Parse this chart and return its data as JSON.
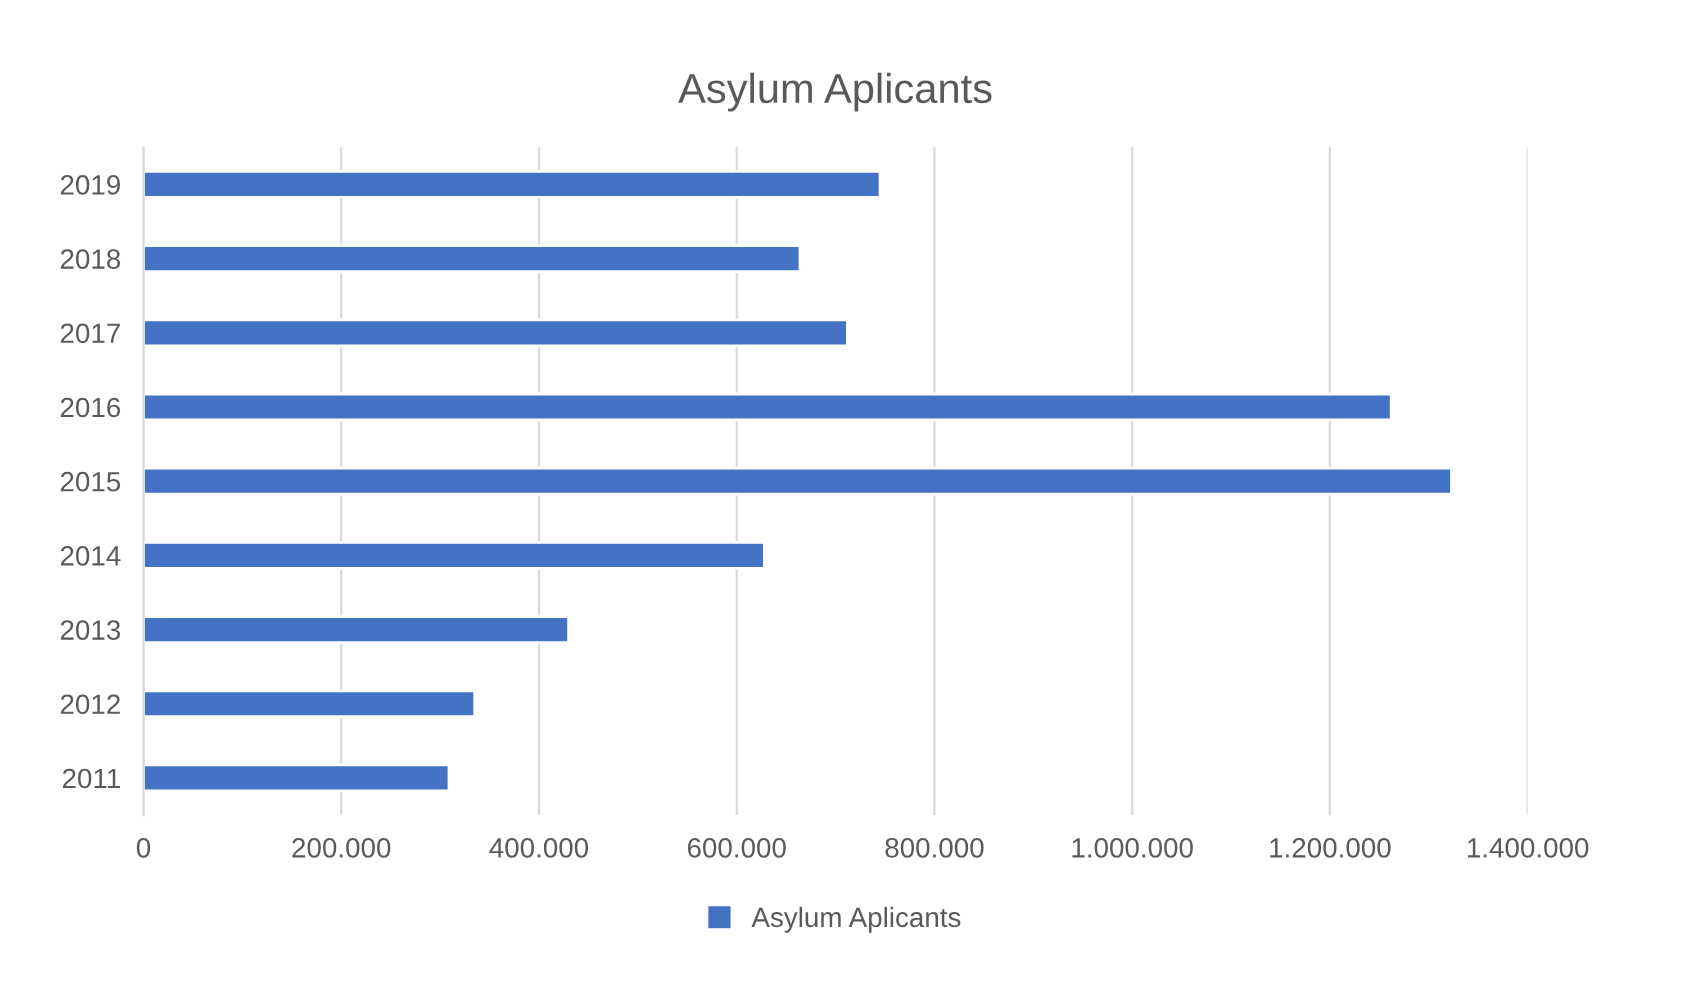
{
  "chart_data": {
    "type": "bar",
    "orientation": "horizontal",
    "title": "Asylum Aplicants",
    "categories": [
      "2019",
      "2018",
      "2017",
      "2016",
      "2015",
      "2014",
      "2013",
      "2012",
      "2011"
    ],
    "series": [
      {
        "name": "Asylum Aplicants",
        "color": "#4472c4",
        "values": [
          745000,
          664000,
          712000,
          1262000,
          1323000,
          628000,
          430000,
          335000,
          309000
        ]
      }
    ],
    "xlim": [
      0,
      1400000
    ],
    "xticks": [
      0,
      {
        "value": 200000,
        "label": "200.000"
      },
      {
        "value": 400000,
        "label": "400.000"
      },
      {
        "value": 600000,
        "label": "600.000"
      },
      {
        "value": 800000,
        "label": "800.000"
      },
      {
        "value": 1000000,
        "label": "1.000.000"
      },
      {
        "value": 1200000,
        "label": "1.200.000"
      },
      {
        "value": 1400000,
        "label": "1.400.000"
      }
    ],
    "grid": "x",
    "legend": "bottom"
  }
}
